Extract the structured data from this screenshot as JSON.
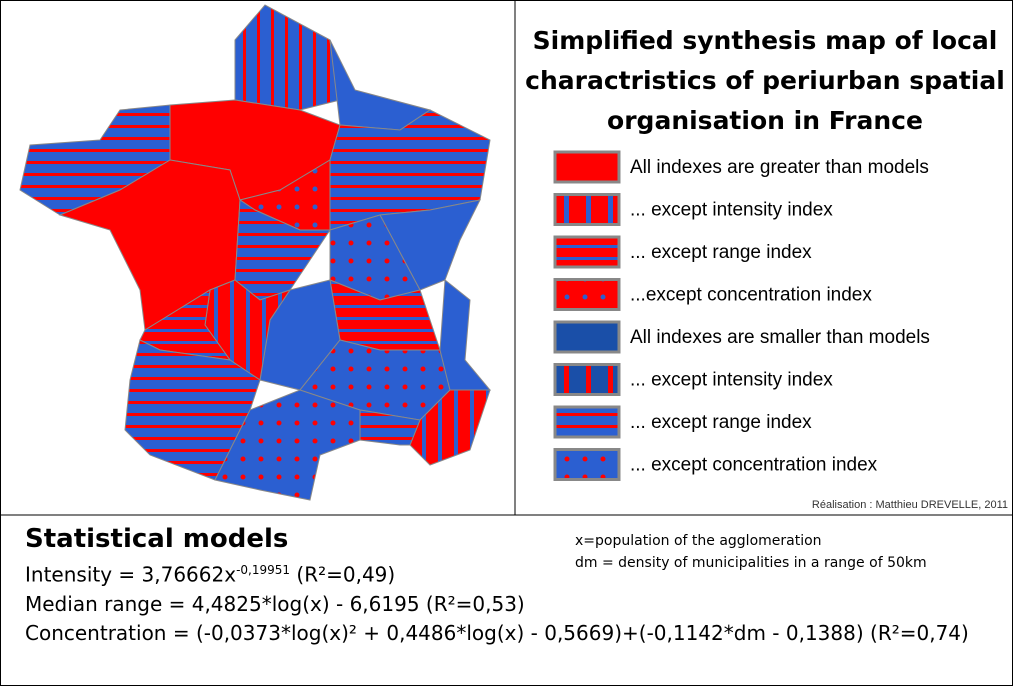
{
  "title": [
    "Simplified synthesis map of local",
    "charactristics of periurban spatial",
    "organisation in France"
  ],
  "legend": [
    "All indexes are greater than models",
    "... except intensity index",
    "... except range index",
    "...except concentration index",
    "All indexes are smaller than models",
    "... except intensity index",
    "... except range index",
    "... except concentration index"
  ],
  "credit": "Réalisation : Matthieu DREVELLE, 2011",
  "models": {
    "title": "Statistical models",
    "notes": [
      "x=population of the agglomeration",
      "dm = density of municipalities in a range of 50km"
    ],
    "intensity": {
      "text": "Intensity = 3,76662x",
      "exponent": "-0,19951",
      "tail": " (R²=0,49)"
    },
    "lines": [
      "Median range = 4,4825*log(x) - 6,6195 (R²=0,53)",
      "Concentration = (-0,0373*log(x)² + 0,4486*log(x) - 0,5669)+(-0,1142*dm - 0,1388) (R²=0,74)"
    ]
  }
}
